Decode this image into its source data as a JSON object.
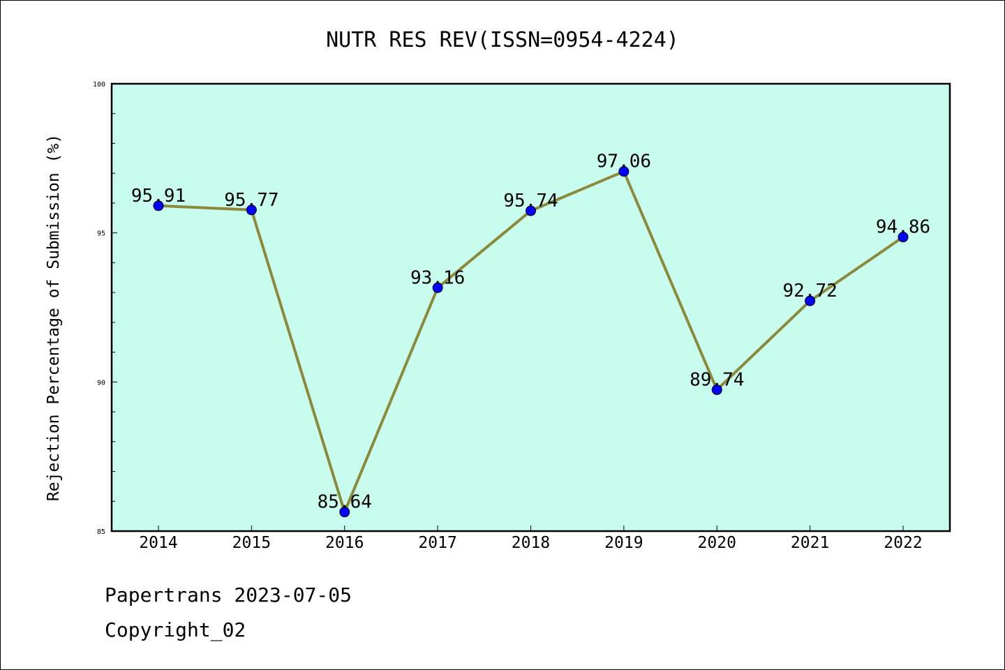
{
  "chart_data": {
    "type": "line",
    "title": "NUTR RES REV(ISSN=0954-4224)",
    "xlabel": "",
    "ylabel": "Rejection Percentage of Submission (%)",
    "categories": [
      "2014",
      "2015",
      "2016",
      "2017",
      "2018",
      "2019",
      "2020",
      "2021",
      "2022"
    ],
    "series": [
      {
        "values": [
          95.91,
          95.77,
          85.64,
          93.16,
          95.74,
          97.06,
          89.74,
          92.72,
          94.86
        ],
        "labels": [
          "95.91",
          "95.77",
          "85.64",
          "93.16",
          "95.74",
          "97.06",
          "89.74",
          "92.72",
          "94.86"
        ]
      }
    ],
    "ylim": [
      85,
      100
    ],
    "yticks": [
      85,
      90,
      95,
      100
    ],
    "ytick_labels": [
      "85",
      "90",
      "95",
      "100"
    ],
    "grid": false,
    "colors": {
      "plot_background": "#c8fcee",
      "line": "#8c8a3a",
      "marker": "#0000ff"
    }
  },
  "footer": {
    "line1": "Papertrans 2023-07-05",
    "line2": "Copyright_02"
  }
}
